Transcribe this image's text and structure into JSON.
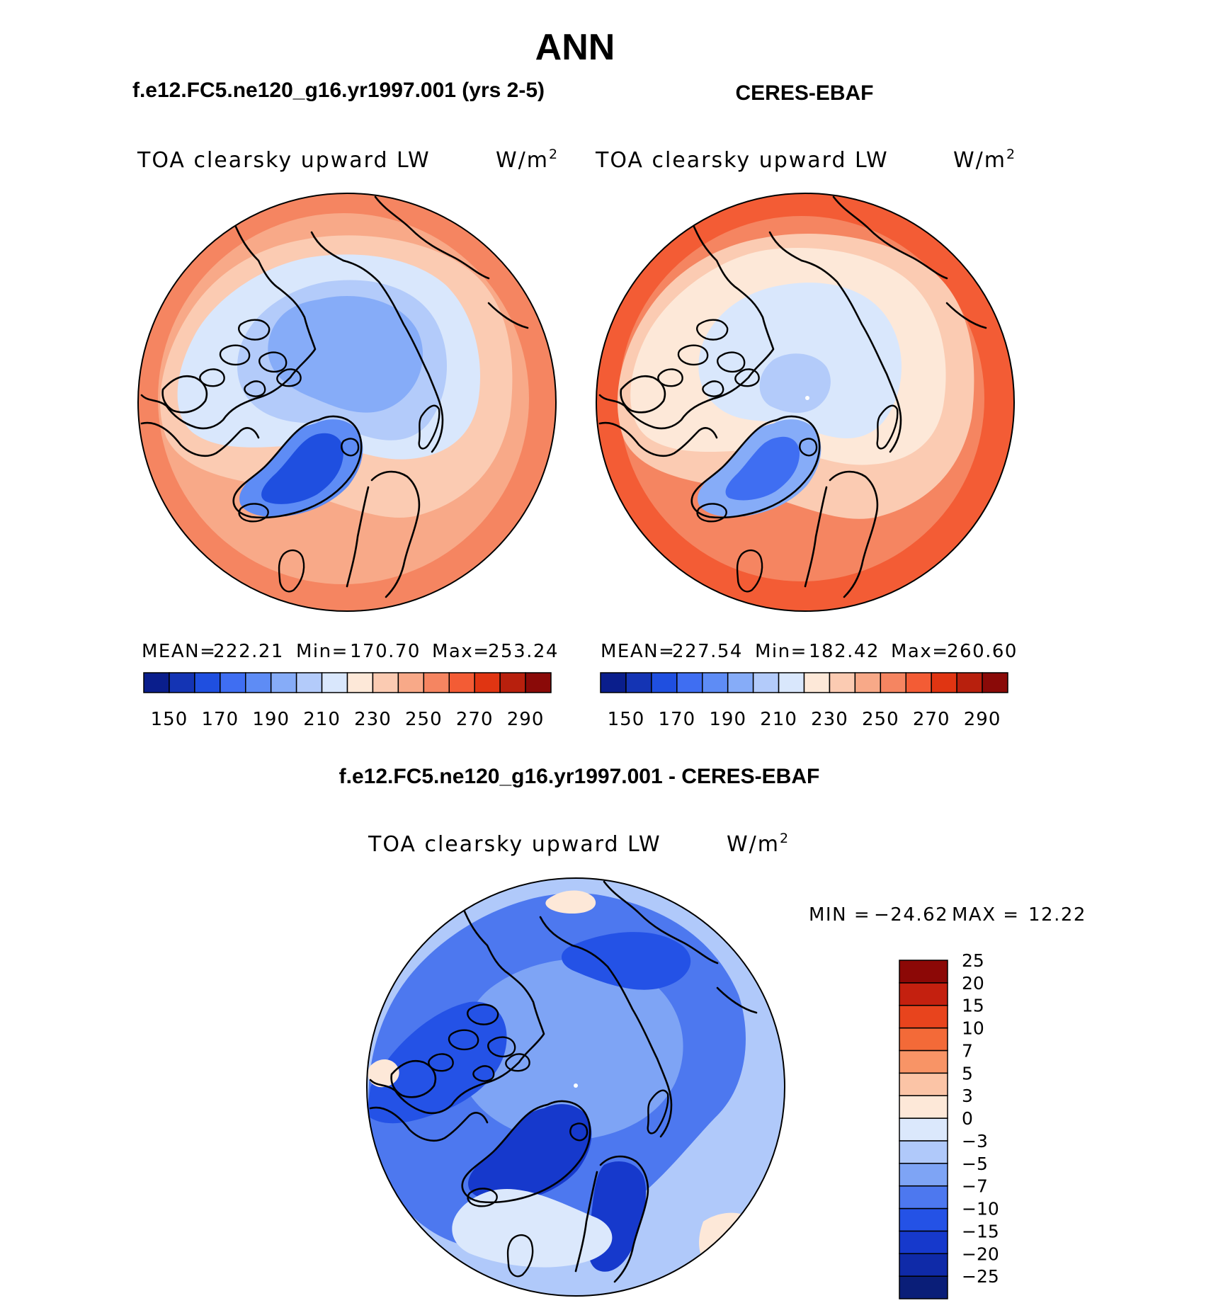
{
  "chart_data": {
    "figure_title": "ANN",
    "panels": [
      {
        "id": "model",
        "type": "heatmap",
        "projection": "north-polar-stereographic",
        "case_title": "f.e12.FC5.ne120_g16.yr1997.001 (yrs 2-5)",
        "variable": "TOA clearsky upward LW",
        "units_base": "W/m",
        "units_exp": "2",
        "stats": [
          {
            "label": "MEAN=",
            "value": "222.21"
          },
          {
            "label": "Min=",
            "value": "170.70"
          },
          {
            "label": "Max=",
            "value": "253.24"
          }
        ],
        "levels": [
          "150",
          "160",
          "170",
          "180",
          "190",
          "200",
          "210",
          "220",
          "230",
          "240",
          "250",
          "260",
          "270",
          "280",
          "290"
        ],
        "tick_labels": [
          "150",
          "170",
          "190",
          "210",
          "230",
          "250",
          "270",
          "290"
        ],
        "colors": [
          "#0a1e8c",
          "#1434b4",
          "#1f4fe0",
          "#3f6ef2",
          "#5e8cf5",
          "#86acf8",
          "#b3cbfa",
          "#d9e7fc",
          "#fde8d8",
          "#fbcbb2",
          "#f8a988",
          "#f58561",
          "#f35c35",
          "#e03512",
          "#b8200d",
          "#8a0a08"
        ],
        "regions": [
          {
            "name": "tropics-ring",
            "level_index": 11
          },
          {
            "name": "midlatitude",
            "level_index": 10
          },
          {
            "name": "subarctic",
            "level_index": 9
          },
          {
            "name": "arctic-land",
            "level_index": 7
          },
          {
            "name": "arctic-ocean",
            "level_index": 6
          },
          {
            "name": "central-arctic",
            "level_index": 5
          },
          {
            "name": "greenland-edge",
            "level_index": 4
          },
          {
            "name": "greenland-core",
            "level_index": 2
          }
        ]
      },
      {
        "id": "obs",
        "type": "heatmap",
        "projection": "north-polar-stereographic",
        "case_title": "CERES-EBAF",
        "variable": "TOA clearsky upward LW",
        "units_base": "W/m",
        "units_exp": "2",
        "stats": [
          {
            "label": "MEAN=",
            "value": "227.54"
          },
          {
            "label": "Min=",
            "value": "182.42"
          },
          {
            "label": "Max=",
            "value": "260.60"
          }
        ],
        "levels": [
          "150",
          "160",
          "170",
          "180",
          "190",
          "200",
          "210",
          "220",
          "230",
          "240",
          "250",
          "260",
          "270",
          "280",
          "290"
        ],
        "tick_labels": [
          "150",
          "170",
          "190",
          "210",
          "230",
          "250",
          "270",
          "290"
        ],
        "colors": [
          "#0a1e8c",
          "#1434b4",
          "#1f4fe0",
          "#3f6ef2",
          "#5e8cf5",
          "#86acf8",
          "#b3cbfa",
          "#d9e7fc",
          "#fde8d8",
          "#fbcbb2",
          "#f8a988",
          "#f58561",
          "#f35c35",
          "#e03512",
          "#b8200d",
          "#8a0a08"
        ],
        "regions": [
          {
            "name": "tropics-ring",
            "level_index": 12
          },
          {
            "name": "midlatitude",
            "level_index": 11
          },
          {
            "name": "subarctic",
            "level_index": 9
          },
          {
            "name": "arctic-land",
            "level_index": 8
          },
          {
            "name": "arctic-ocean",
            "level_index": 7
          },
          {
            "name": "central-arctic",
            "level_index": 6
          },
          {
            "name": "greenland-edge",
            "level_index": 5
          },
          {
            "name": "greenland-core",
            "level_index": 3
          }
        ]
      },
      {
        "id": "diff",
        "type": "heatmap",
        "projection": "north-polar-stereographic",
        "case_title": "f.e12.FC5.ne120_g16.yr1997.001 - CERES-EBAF",
        "variable": "TOA clearsky upward LW",
        "units_base": "W/m",
        "units_exp": "2",
        "min_label": "MIN =",
        "min_value": "−24.62",
        "max_label": "MAX =",
        "max_value": "12.22",
        "levels": [
          "−25",
          "−20",
          "−15",
          "−10",
          "−7",
          "−5",
          "−3",
          "0",
          "3",
          "5",
          "7",
          "10",
          "15",
          "20",
          "25"
        ],
        "colors": [
          "#0a1e78",
          "#0f2aa8",
          "#1639cc",
          "#2452e6",
          "#4d78ef",
          "#7ea4f5",
          "#b0c9fa",
          "#dbe8fc",
          "#fde8d8",
          "#fbc4a6",
          "#f89466",
          "#f36a38",
          "#e8441d",
          "#c4200f",
          "#8c0806"
        ],
        "regions": [
          {
            "name": "outer-ring",
            "level_index": 6
          },
          {
            "name": "eurasia-west",
            "level_index": 4
          },
          {
            "name": "north-america",
            "level_index": 3
          },
          {
            "name": "arctic-ocean",
            "level_index": 5
          },
          {
            "name": "greenland",
            "level_index": 2
          },
          {
            "name": "north-atlantic",
            "level_index": 7
          },
          {
            "name": "warm-patches",
            "level_index": 8
          }
        ]
      }
    ]
  }
}
